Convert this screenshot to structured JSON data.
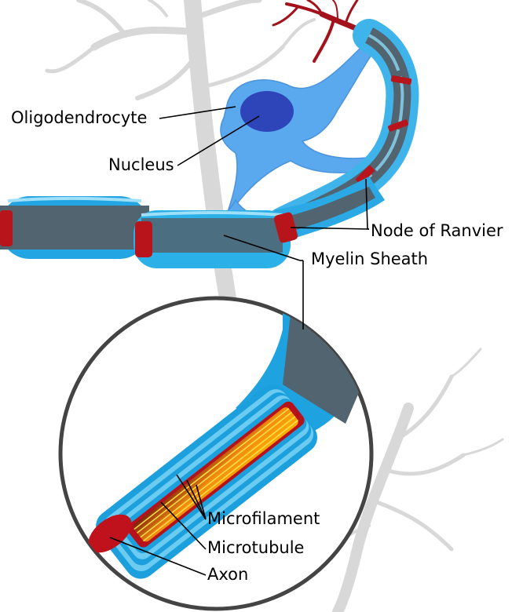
{
  "labels": {
    "oligodendrocyte": "Oligodendrocyte",
    "nucleus": "Nucleus",
    "node_of_ranvier": "Node of Ranvier",
    "myelin_sheath": "Myelin Sheath",
    "microfilament": "Microfilament",
    "microtubule": "Microtubule",
    "axon": "Axon"
  },
  "colors": {
    "myelin": "#1aa6e0",
    "myelin_light": "#7fd2f2",
    "axon_core": "#51646f",
    "node": "#b8141c",
    "nucleus": "#3a55c8",
    "oligodendrocyte": "#5aa9ef",
    "background_neuron": "#d6d6d6",
    "dendrite": "#a0141c",
    "interior": "#f28a10"
  }
}
